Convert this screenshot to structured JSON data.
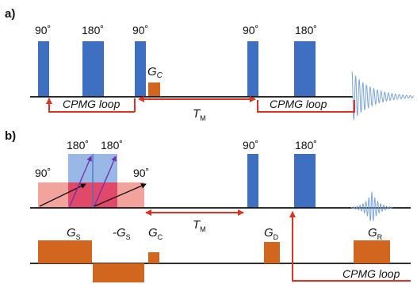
{
  "colors": {
    "pulse_blue": "#3f6fc0",
    "pulse_blue_light": "#9ab8e6",
    "gradient_orange": "#d2661e",
    "red_arrow": "#e0301e",
    "pink_block": "#f2a49c",
    "dark_pink_block": "#e0496a",
    "purple_arrow": "#6b2fb0",
    "signal_blue": "#7aa6dc",
    "baseline": "#111111"
  },
  "panel_a": {
    "label": "a)",
    "pulse_labels": [
      "90˚",
      "180˚",
      "90˚",
      "90˚",
      "180˚"
    ],
    "gradient_label": "G",
    "gradient_sub": "C",
    "loop_left": "CPMG loop",
    "tm_label": "T",
    "tm_sub": "M",
    "loop_right": "CPMG loop"
  },
  "panel_b": {
    "label": "b)",
    "pulse_labels_top": [
      "180˚",
      "180˚"
    ],
    "pulse_label_left": "90˚",
    "pulse_label_right": "90˚",
    "pulse_labels_main": [
      "90˚",
      "180˚"
    ],
    "tm_label": "T",
    "tm_sub": "M",
    "gs_label": "G",
    "gs_sub": "S",
    "neg_gs_label": "-G",
    "neg_gs_sub": "S",
    "gc_label": "G",
    "gc_sub": "C",
    "gd_label": "G",
    "gd_sub": "D",
    "gr_label": "G",
    "gr_sub": "R",
    "loop_label": "CPMG loop"
  }
}
